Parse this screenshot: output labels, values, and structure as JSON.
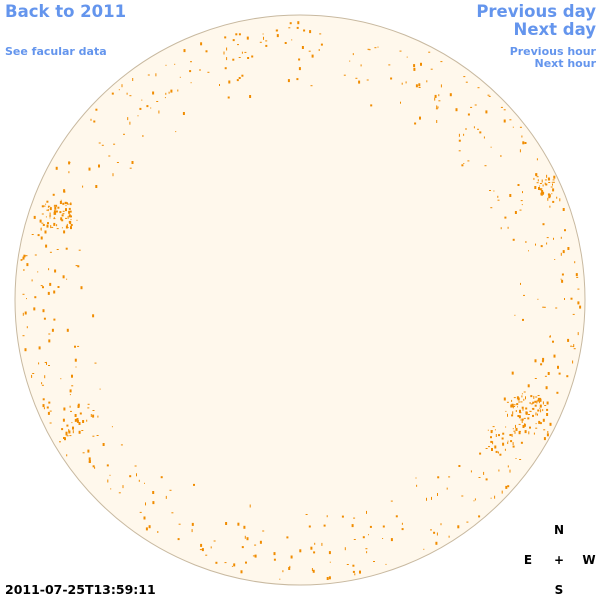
{
  "nav": {
    "back_label": "Back to 2011",
    "facular_label": "See facular data",
    "prev_day_label": "Previous day",
    "next_day_label": "Next day",
    "prev_hour_label": "Previous hour",
    "next_hour_label": "Next hour"
  },
  "timestamp": "2011-07-25T13:59:11",
  "compass": {
    "north": "N",
    "east": "E",
    "center": "+",
    "west": "W",
    "south": "S"
  },
  "colors": {
    "link": "#6495ED",
    "disk_fill": "#FFF8EC",
    "disk_edge": "#C8B9A0",
    "feature": "#F08C00"
  }
}
